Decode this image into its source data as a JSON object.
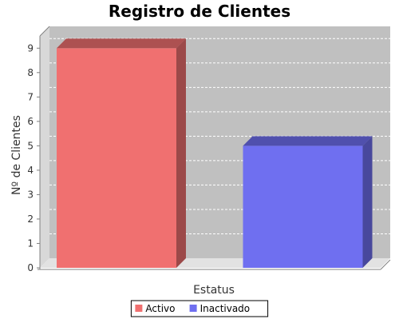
{
  "chart_data": {
    "type": "bar",
    "title": "Registro de Clientes",
    "xlabel": "Estatus",
    "ylabel": "Nº de Clientes",
    "categories": [
      ""
    ],
    "series": [
      {
        "name": "Activo",
        "values": [
          9
        ],
        "color": "#f07070"
      },
      {
        "name": "Inactivado",
        "values": [
          5
        ],
        "color": "#6f6ff0"
      }
    ],
    "ylim": [
      0,
      9.5
    ],
    "yticks": [
      0,
      1,
      2,
      3,
      4,
      5,
      6,
      7,
      8,
      9
    ],
    "grid": true,
    "legend_position": "bottom",
    "style": "3d",
    "plot_background": "#c0c0c0"
  }
}
